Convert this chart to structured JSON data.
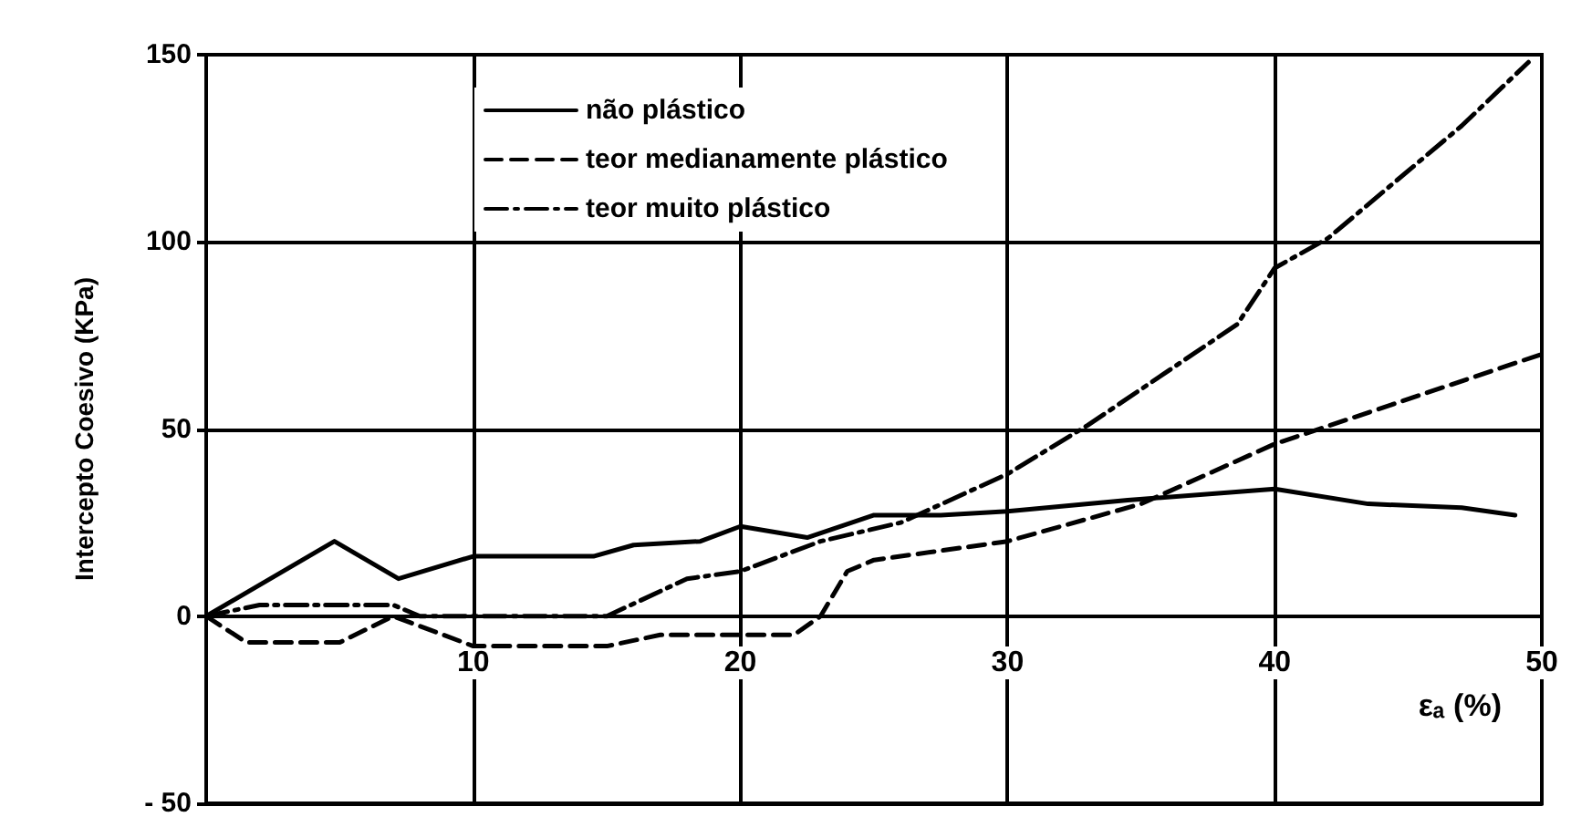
{
  "chart_data": {
    "type": "line",
    "xlabel": "εₐ (%)",
    "ylabel": "Intercepto Coesivo (KPa)",
    "xlim": [
      0,
      50
    ],
    "xticks": [
      10,
      20,
      30,
      40,
      50
    ],
    "ylim": [
      -50,
      150
    ],
    "yticks": [
      {
        "value": -50,
        "label": "- 50"
      },
      0,
      50,
      100,
      150
    ],
    "grid": true,
    "legend": "top",
    "marker": "none",
    "series": [
      {
        "name": "não plástico",
        "color": "#000000",
        "line_style": "solid",
        "x": [
          0,
          4.8,
          7.2,
          10,
          14.5,
          16,
          18.5,
          20,
          22.5,
          25,
          27.5,
          30,
          34.5,
          40,
          43.5,
          47,
          49
        ],
        "values": [
          0,
          20,
          10,
          16,
          16,
          19,
          20,
          24,
          21,
          27,
          27,
          28,
          31,
          34,
          30,
          29,
          27
        ]
      },
      {
        "name": "teor medianamente plástico",
        "color": "#000000",
        "line_style": "dashed",
        "x": [
          0,
          1.5,
          5,
          7,
          10,
          15,
          17,
          22,
          23,
          24,
          25,
          30,
          35,
          40,
          45,
          50
        ],
        "values": [
          0,
          -7,
          -7,
          0,
          -8,
          -8,
          -5,
          -5,
          0,
          12,
          15,
          20,
          30,
          46,
          58,
          70
        ]
      },
      {
        "name": "teor muito plástico",
        "color": "#000000",
        "line_style": "dashdot",
        "x": [
          0,
          2,
          7,
          8,
          15,
          18,
          20,
          23,
          26,
          30,
          33,
          38.6,
          40,
          42,
          47,
          49.5
        ],
        "values": [
          0,
          3,
          3,
          0,
          0,
          10,
          12,
          20,
          25,
          38,
          51,
          78,
          93,
          101,
          131,
          148
        ]
      }
    ]
  }
}
